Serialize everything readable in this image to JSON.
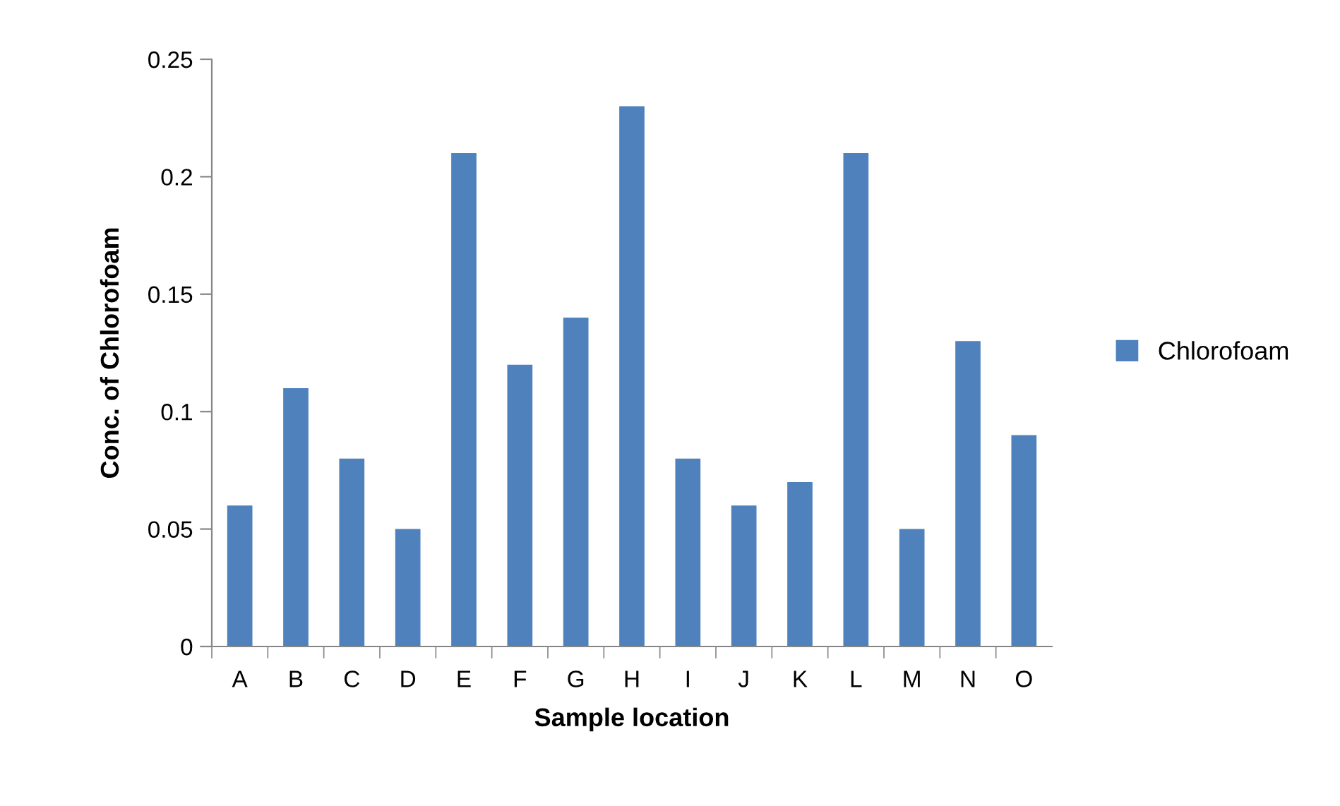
{
  "chart_data": {
    "type": "bar",
    "xlabel": "Sample location",
    "ylabel": "Conc. of Chlorofoam",
    "categories": [
      "A",
      "B",
      "C",
      "D",
      "E",
      "F",
      "G",
      "H",
      "I",
      "J",
      "K",
      "L",
      "M",
      "N",
      "O"
    ],
    "series": [
      {
        "name": "Chlorofoam",
        "color": "#4f81bd",
        "values": [
          0.06,
          0.11,
          0.08,
          0.05,
          0.21,
          0.12,
          0.14,
          0.23,
          0.08,
          0.06,
          0.07,
          0.21,
          0.05,
          0.13,
          0.09
        ]
      }
    ],
    "ylim": [
      0,
      0.25
    ],
    "yticks": [
      {
        "value": 0,
        "label": "0"
      },
      0.05,
      0.1,
      0.15,
      0.2,
      0.25
    ],
    "grid": false,
    "legend": "right"
  }
}
